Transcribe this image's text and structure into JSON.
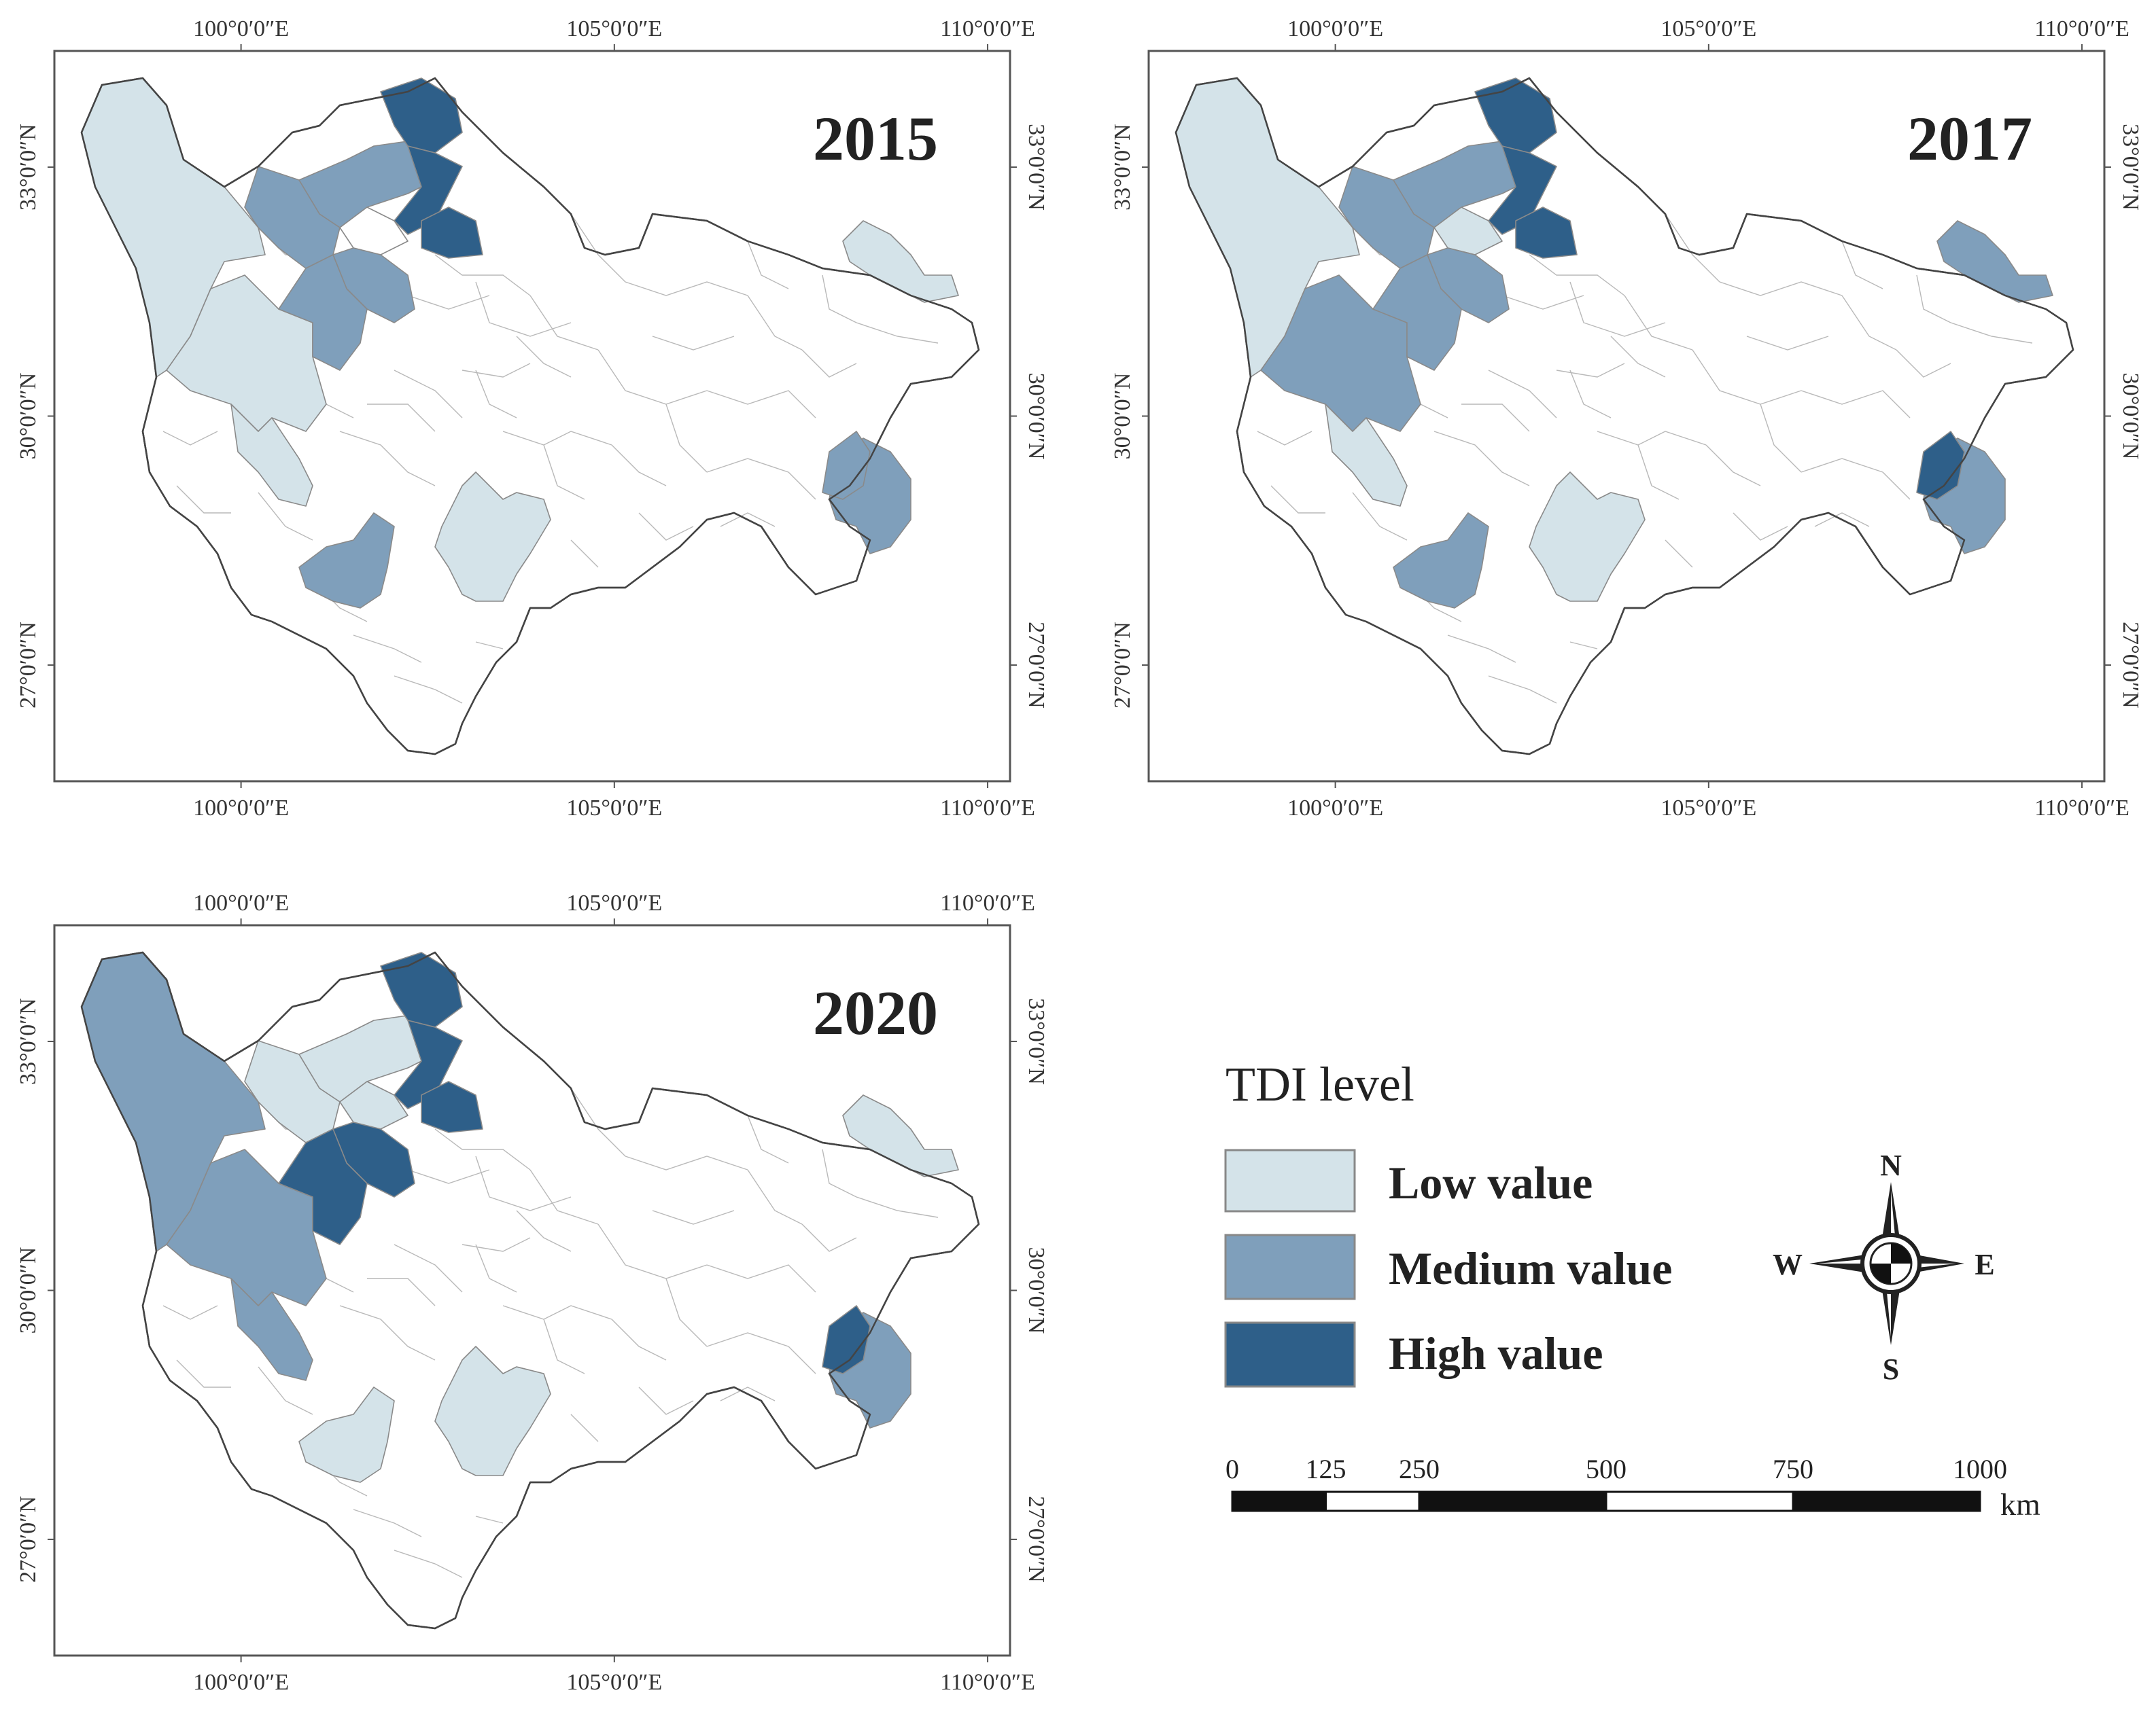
{
  "colors": {
    "none": "#ffffff",
    "low": "#d4e3e9",
    "medium": "#7f9fbb",
    "high": "#2e5f89"
  },
  "axes": {
    "lon_labels": [
      "100°0′0″E",
      "105°0′0″E",
      "110°0′0″E"
    ],
    "lat_labels": [
      "33°0′0″N",
      "30°0′0″N",
      "27°0′0″N"
    ],
    "lon_values": [
      100,
      105,
      110
    ],
    "lat_values": [
      33,
      30,
      27
    ],
    "lon_range": [
      97.5,
      110.3
    ],
    "lat_range": [
      25.6,
      34.4
    ]
  },
  "maps": [
    {
      "year": "2015",
      "regions": {
        "northwest": "low",
        "west_central": "low",
        "southwest_strip": "low",
        "north_mid": "medium",
        "north_left": "medium",
        "north_inner": "none",
        "mid_west_a": "medium",
        "mid_west_b": "medium",
        "far_north_a": "high",
        "far_north_b": "high",
        "far_north_c": "high",
        "south_center": "low",
        "south_west": "medium",
        "northeast": "low",
        "east": "medium",
        "east_core": "medium"
      }
    },
    {
      "year": "2017",
      "regions": {
        "northwest": "low",
        "west_central": "medium",
        "southwest_strip": "low",
        "north_mid": "medium",
        "north_left": "medium",
        "north_inner": "low",
        "mid_west_a": "medium",
        "mid_west_b": "medium",
        "far_north_a": "high",
        "far_north_b": "high",
        "far_north_c": "high",
        "south_center": "low",
        "south_west": "medium",
        "northeast": "medium",
        "east": "medium",
        "east_core": "high"
      }
    },
    {
      "year": "2020",
      "regions": {
        "northwest": "medium",
        "west_central": "medium",
        "southwest_strip": "medium",
        "north_mid": "low",
        "north_left": "low",
        "north_inner": "low",
        "mid_west_a": "high",
        "mid_west_b": "high",
        "far_north_a": "high",
        "far_north_b": "high",
        "far_north_c": "high",
        "south_center": "low",
        "south_west": "low",
        "northeast": "low",
        "east": "medium",
        "east_core": "high"
      }
    }
  ],
  "legend": {
    "title": "TDI level",
    "items": [
      {
        "label": "Low value",
        "level": "low"
      },
      {
        "label": "Medium value",
        "level": "medium"
      },
      {
        "label": "High value",
        "level": "high"
      }
    ]
  },
  "compass": {
    "north": "N",
    "south": "S",
    "east": "E",
    "west": "W"
  },
  "scale_bar": {
    "labels": [
      "0",
      "125",
      "250",
      "500",
      "750",
      "1000"
    ],
    "values": [
      0,
      125,
      250,
      500,
      750,
      1000
    ],
    "unit": "km"
  }
}
